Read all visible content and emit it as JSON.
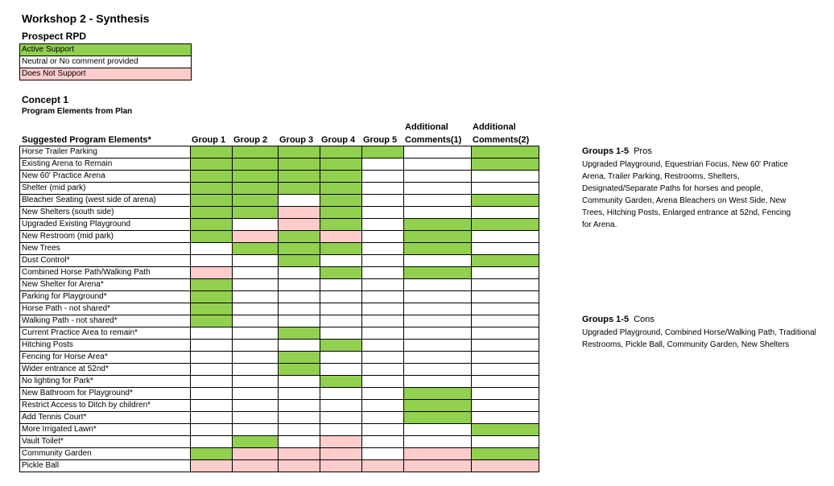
{
  "title": "Workshop 2 - Synthesis",
  "subtitle": "Prospect RPD",
  "legend": {
    "active": "Active Support",
    "neutral": "Neutral or No comment provided",
    "not_support": "Does Not Support"
  },
  "colors": {
    "a": "#92d050",
    "n": "#ffffff",
    "d": "#ffcccc"
  },
  "concept_title": "Concept 1",
  "concept_subtitle": "Program Elements from Plan",
  "headers": {
    "elements": "Suggested Program Elements*",
    "g1": "Group 1",
    "g2": "Group 2",
    "g3": "Group 3",
    "g4": "Group 4",
    "g5": "Group 5",
    "add1_line1": "Additional",
    "add1_line2": "Comments(1)",
    "add2_line1": "Additional",
    "add2_line2": "Comments(2)"
  },
  "rows": [
    {
      "label": "Horse Trailer Parking",
      "cells": [
        "a",
        "a",
        "a",
        "a",
        "a",
        "n",
        "a"
      ]
    },
    {
      "label": "Existing Arena to Remain",
      "cells": [
        "a",
        "a",
        "a",
        "a",
        "n",
        "n",
        "a"
      ]
    },
    {
      "label": "New 60' Practice Arena",
      "cells": [
        "a",
        "a",
        "a",
        "a",
        "n",
        "n",
        "n"
      ]
    },
    {
      "label": "Shelter (mid park)",
      "cells": [
        "a",
        "a",
        "a",
        "a",
        "n",
        "n",
        "n"
      ]
    },
    {
      "label": "Bleacher Seating (west side of arena)",
      "cells": [
        "a",
        "a",
        "n",
        "a",
        "n",
        "n",
        "a"
      ]
    },
    {
      "label": "New Shelters (south side)",
      "cells": [
        "a",
        "a",
        "d",
        "a",
        "n",
        "n",
        "n"
      ]
    },
    {
      "label": "Upgraded Existing Playground",
      "cells": [
        "a",
        "n",
        "d",
        "a",
        "n",
        "a",
        "a"
      ]
    },
    {
      "label": "New Restroom (mid park)",
      "cells": [
        "a",
        "d",
        "a",
        "d",
        "n",
        "a",
        "n"
      ]
    },
    {
      "label": "New Trees",
      "cells": [
        "n",
        "a",
        "a",
        "a",
        "n",
        "a",
        "n"
      ]
    },
    {
      "label": "Dust Control*",
      "cells": [
        "n",
        "n",
        "a",
        "n",
        "n",
        "n",
        "a"
      ]
    },
    {
      "label": "Combined Horse Path/Walking Path",
      "cells": [
        "d",
        "n",
        "n",
        "a",
        "n",
        "a",
        "n"
      ]
    },
    {
      "label": "New Shelter for Arena*",
      "cells": [
        "a",
        "n",
        "n",
        "n",
        "n",
        "n",
        "n"
      ]
    },
    {
      "label": "Parking for Playground*",
      "cells": [
        "a",
        "n",
        "n",
        "n",
        "n",
        "n",
        "n"
      ]
    },
    {
      "label": "Horse Path - not shared*",
      "cells": [
        "a",
        "n",
        "n",
        "n",
        "n",
        "n",
        "n"
      ]
    },
    {
      "label": "Walking Path - not shared*",
      "cells": [
        "a",
        "n",
        "n",
        "n",
        "n",
        "n",
        "n"
      ]
    },
    {
      "label": "Current Practice Area to remain*",
      "cells": [
        "n",
        "n",
        "a",
        "n",
        "n",
        "n",
        "n"
      ]
    },
    {
      "label": "Hitching Posts",
      "cells": [
        "n",
        "n",
        "n",
        "a",
        "n",
        "n",
        "n"
      ]
    },
    {
      "label": "Fencing for Horse Area*",
      "cells": [
        "n",
        "n",
        "a",
        "n",
        "n",
        "n",
        "n"
      ]
    },
    {
      "label": "Wider entrance at 52nd*",
      "cells": [
        "n",
        "n",
        "a",
        "n",
        "n",
        "n",
        "n"
      ]
    },
    {
      "label": "No lighting for Park*",
      "cells": [
        "n",
        "n",
        "n",
        "a",
        "n",
        "n",
        "n"
      ]
    },
    {
      "label": "New Bathroom for Playground*",
      "cells": [
        "n",
        "n",
        "n",
        "n",
        "n",
        "a",
        "n"
      ]
    },
    {
      "label": "Restrict Access to Ditch by children*",
      "cells": [
        "n",
        "n",
        "n",
        "n",
        "n",
        "a",
        "n"
      ]
    },
    {
      "label": "Add Tennis Court*",
      "cells": [
        "n",
        "n",
        "n",
        "n",
        "n",
        "a",
        "n"
      ]
    },
    {
      "label": "More Irrigated Lawn*",
      "cells": [
        "n",
        "n",
        "n",
        "n",
        "n",
        "n",
        "a"
      ]
    },
    {
      "label": "Vault Toilet*",
      "cells": [
        "n",
        "a",
        "n",
        "d",
        "n",
        "n",
        "n"
      ]
    },
    {
      "label": "Community Garden",
      "cells": [
        "a",
        "d",
        "d",
        "d",
        "n",
        "d",
        "a"
      ]
    },
    {
      "label": "Pickle Ball",
      "cells": [
        "d",
        "d",
        "d",
        "d",
        "d",
        "d",
        "d"
      ]
    }
  ],
  "pros": {
    "heading_bold": "Groups 1-5",
    "heading_rest": "Pros",
    "lines": [
      "Upgraded Playground, Equestrian Focus, New 60' Pratice",
      "Arena, Trailer Parking, Restrooms, Shelters,",
      "Designated/Separate Paths for horses and people,",
      "Community Garden, Arena Bleachers on West Side, New",
      "Trees, Hitching Posts, Enlarged entrance at 52nd, Fencing",
      "for Arena."
    ]
  },
  "cons": {
    "heading_bold": "Groups 1-5",
    "heading_rest": "Cons",
    "lines": [
      "Upgraded Playground, Combined Horse/Walking Path, Traditional",
      "Restrooms, Pickle Ball, Community Garden, New Shelters"
    ]
  }
}
